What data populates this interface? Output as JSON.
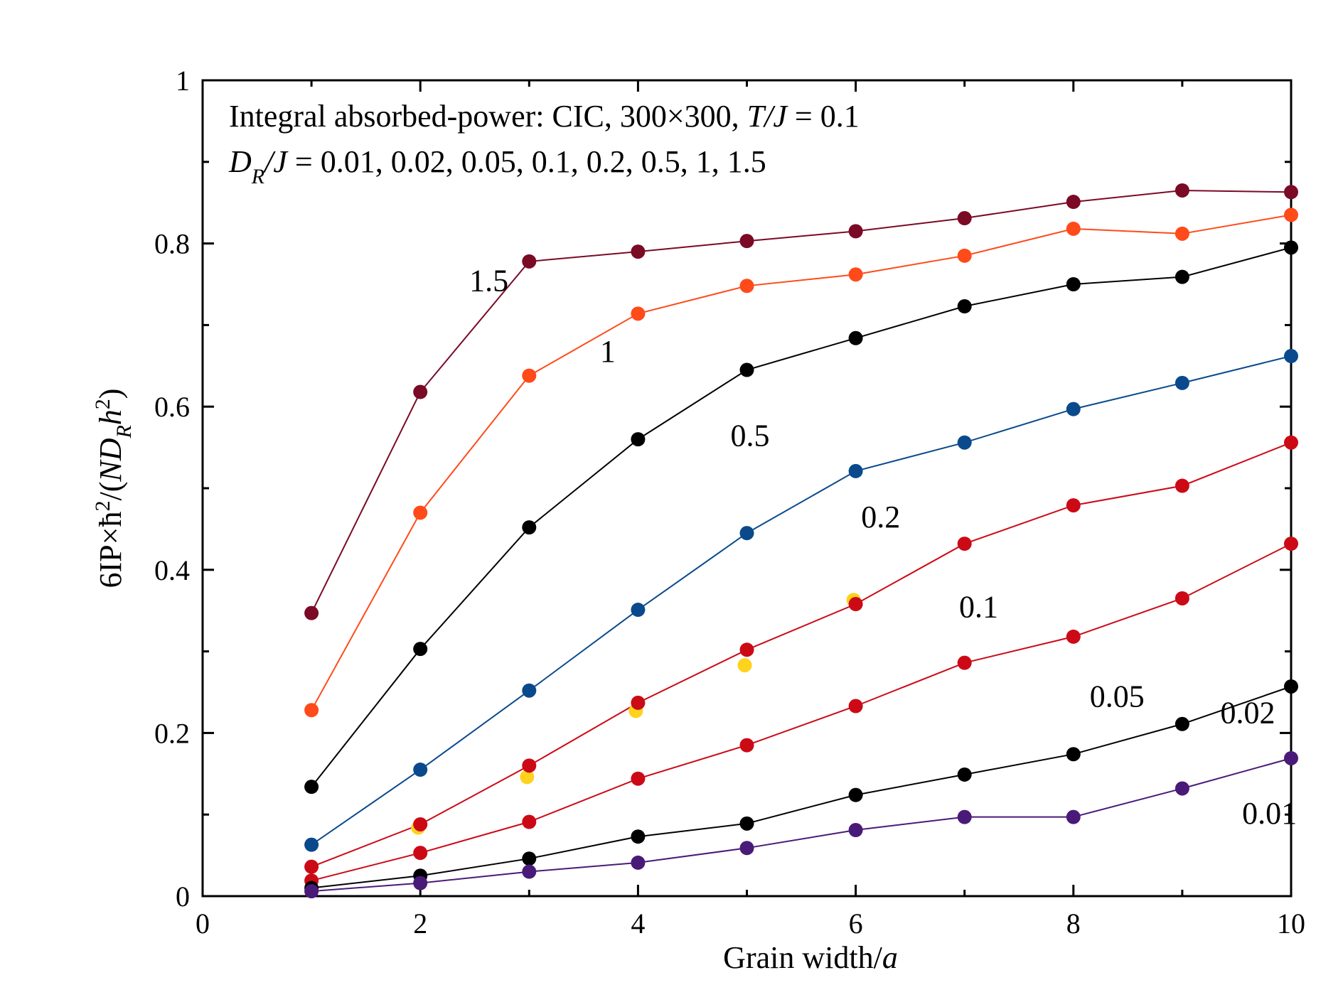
{
  "chart_data": {
    "type": "line",
    "title": "",
    "xlabel": {
      "text": "Grain width/",
      "italic_part": "a"
    },
    "ylabel": {
      "part1": "6IP×ħ",
      "sup1": "2",
      "part2": "/(",
      "italic_N": "N",
      "italic_D": "D",
      "sub_R": "R",
      "italic_h": "h",
      "sup2": "2",
      "part3": ")"
    },
    "xlim": [
      0,
      10
    ],
    "ylim": [
      0,
      1
    ],
    "x_ticks": [
      "0",
      "2",
      "4",
      "6",
      "8",
      "10"
    ],
    "y_ticks": [
      "0",
      "0.2",
      "0.4",
      "0.6",
      "0.8",
      "1"
    ],
    "grid": false,
    "annotations": {
      "line1": {
        "prefix": "Integral absorbed-power: CIC, 300×300, ",
        "italic": "T/J",
        "suffix": " = 0.1"
      },
      "line2": {
        "italic_D": "D",
        "sub": "R",
        "italic_J": "/J",
        "suffix": " = 0.01, 0.02, 0.05, 0.1, 0.2, 0.5, 1, 1.5"
      }
    },
    "x": [
      1,
      2,
      3,
      4,
      5,
      6,
      7,
      8,
      9,
      10
    ],
    "series": [
      {
        "name": "1.5",
        "color": "#7a0a26",
        "values": [
          0.347,
          0.618,
          0.778,
          0.79,
          0.803,
          0.815,
          0.831,
          0.851,
          0.865,
          0.863
        ],
        "label_at": [
          2.45,
          0.755
        ]
      },
      {
        "name": "1",
        "color": "#ff4a1a",
        "values": [
          0.228,
          0.47,
          0.638,
          0.714,
          0.748,
          0.762,
          0.785,
          0.818,
          0.812,
          0.835
        ],
        "label_at": [
          3.65,
          0.668
        ]
      },
      {
        "name": "0.5",
        "color": "#000000",
        "values": [
          0.134,
          0.303,
          0.452,
          0.56,
          0.645,
          0.684,
          0.723,
          0.75,
          0.759,
          0.795
        ],
        "label_at": [
          4.85,
          0.565
        ]
      },
      {
        "name": "0.2",
        "color": "#0a4a8c",
        "values": [
          0.063,
          0.155,
          0.252,
          0.351,
          0.445,
          0.521,
          0.556,
          0.597,
          0.629,
          0.662
        ],
        "label_at": [
          6.05,
          0.465
        ]
      },
      {
        "name": "0.1",
        "color": "#cc0a16",
        "values": [
          0.036,
          0.088,
          0.16,
          0.237,
          0.302,
          0.358,
          0.432,
          0.479,
          0.503,
          0.556
        ],
        "label_at": [
          6.95,
          0.355
        ]
      },
      {
        "name": "0.05",
        "color": "#cc0a16",
        "values": [
          0.019,
          0.053,
          0.091,
          0.144,
          0.185,
          0.233,
          0.286,
          0.318,
          0.365,
          0.432
        ],
        "label_at": [
          8.15,
          0.245
        ]
      },
      {
        "name": "0.02",
        "color": "#000000",
        "values": [
          0.01,
          0.025,
          0.046,
          0.073,
          0.089,
          0.124,
          0.149,
          0.174,
          0.211,
          0.257
        ],
        "label_at": [
          9.35,
          0.225
        ]
      },
      {
        "name": "0.01",
        "color": "#4a1a78",
        "values": [
          0.006,
          0.016,
          0.03,
          0.041,
          0.059,
          0.081,
          0.097,
          0.097,
          0.132,
          0.169
        ],
        "label_at": [
          9.55,
          0.102
        ]
      }
    ],
    "extra_points": {
      "name": "yellow",
      "color": "#ffd21e",
      "x": [
        2,
        3,
        4,
        5,
        6
      ],
      "values": [
        0.091,
        0.153,
        0.234,
        0.29,
        0.37
      ]
    }
  }
}
